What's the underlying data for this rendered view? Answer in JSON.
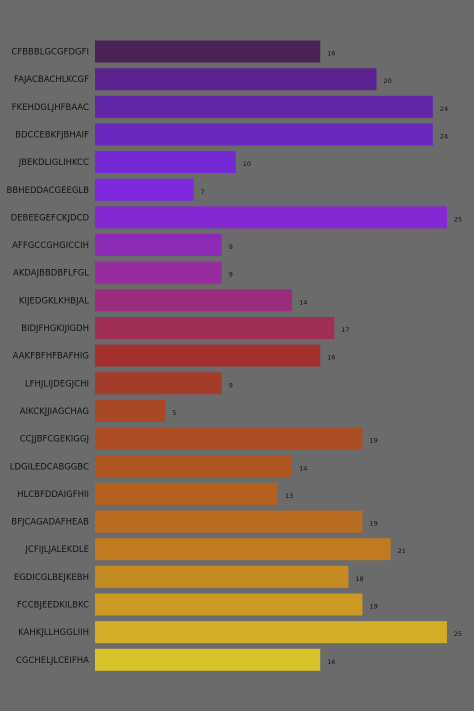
{
  "chart_data": {
    "type": "bar",
    "orientation": "horizontal",
    "background": "#6b6b6b",
    "xlim": [
      0,
      26
    ],
    "grid": false,
    "categories": [
      "CFBBBLGCGFDGFI",
      "FAJACBACHLKCGF",
      "FKEHDGLJHFBAAC",
      "BDCCEBKFJBHAIF",
      "JBEKDLIGLIHKCC",
      "BBHEDDACGEEGLB",
      "DEBEEGEFCKJDCD",
      "AFFGCCGHGICCIH",
      "AKDAJBBDBFLFGL",
      "KIJEDGKLKHBJAL",
      "BIDJFHGKIJIGDH",
      "AAKFBFHFBAFHIG",
      "LFHJLIJDEGJCHI",
      "AIKCKJJIAGCHAG",
      "CCJJBFCGEKIGGJ",
      "LDGILEDCABGGBC",
      "HLCBFDDAIGFHII",
      "BFJCAGADAFHEAB",
      "JCFIJLJALEKDLE",
      "EGDICGLBEJKEBH",
      "FCCBJEEDKILBKC",
      "KAHKJLLHGGLIIH",
      "CGCHELJLCEIFHA"
    ],
    "values": [
      16,
      20,
      24,
      24,
      10,
      7,
      25,
      9,
      9,
      14,
      17,
      16,
      9,
      5,
      19,
      14,
      13,
      19,
      21,
      18,
      19,
      25,
      16
    ],
    "colors": [
      "#4a2255",
      "#5b2490",
      "#6326a8",
      "#6a28be",
      "#7428d6",
      "#7d28dc",
      "#8428d4",
      "#8e2ab8",
      "#962c9e",
      "#9a2c7c",
      "#a02e56",
      "#a43030",
      "#a43c2a",
      "#a84826",
      "#ac4e24",
      "#b05620",
      "#b66020",
      "#ba6c20",
      "#c07a20",
      "#c68a22",
      "#cc9a24",
      "#d2ae26",
      "#d8c42a"
    ]
  }
}
